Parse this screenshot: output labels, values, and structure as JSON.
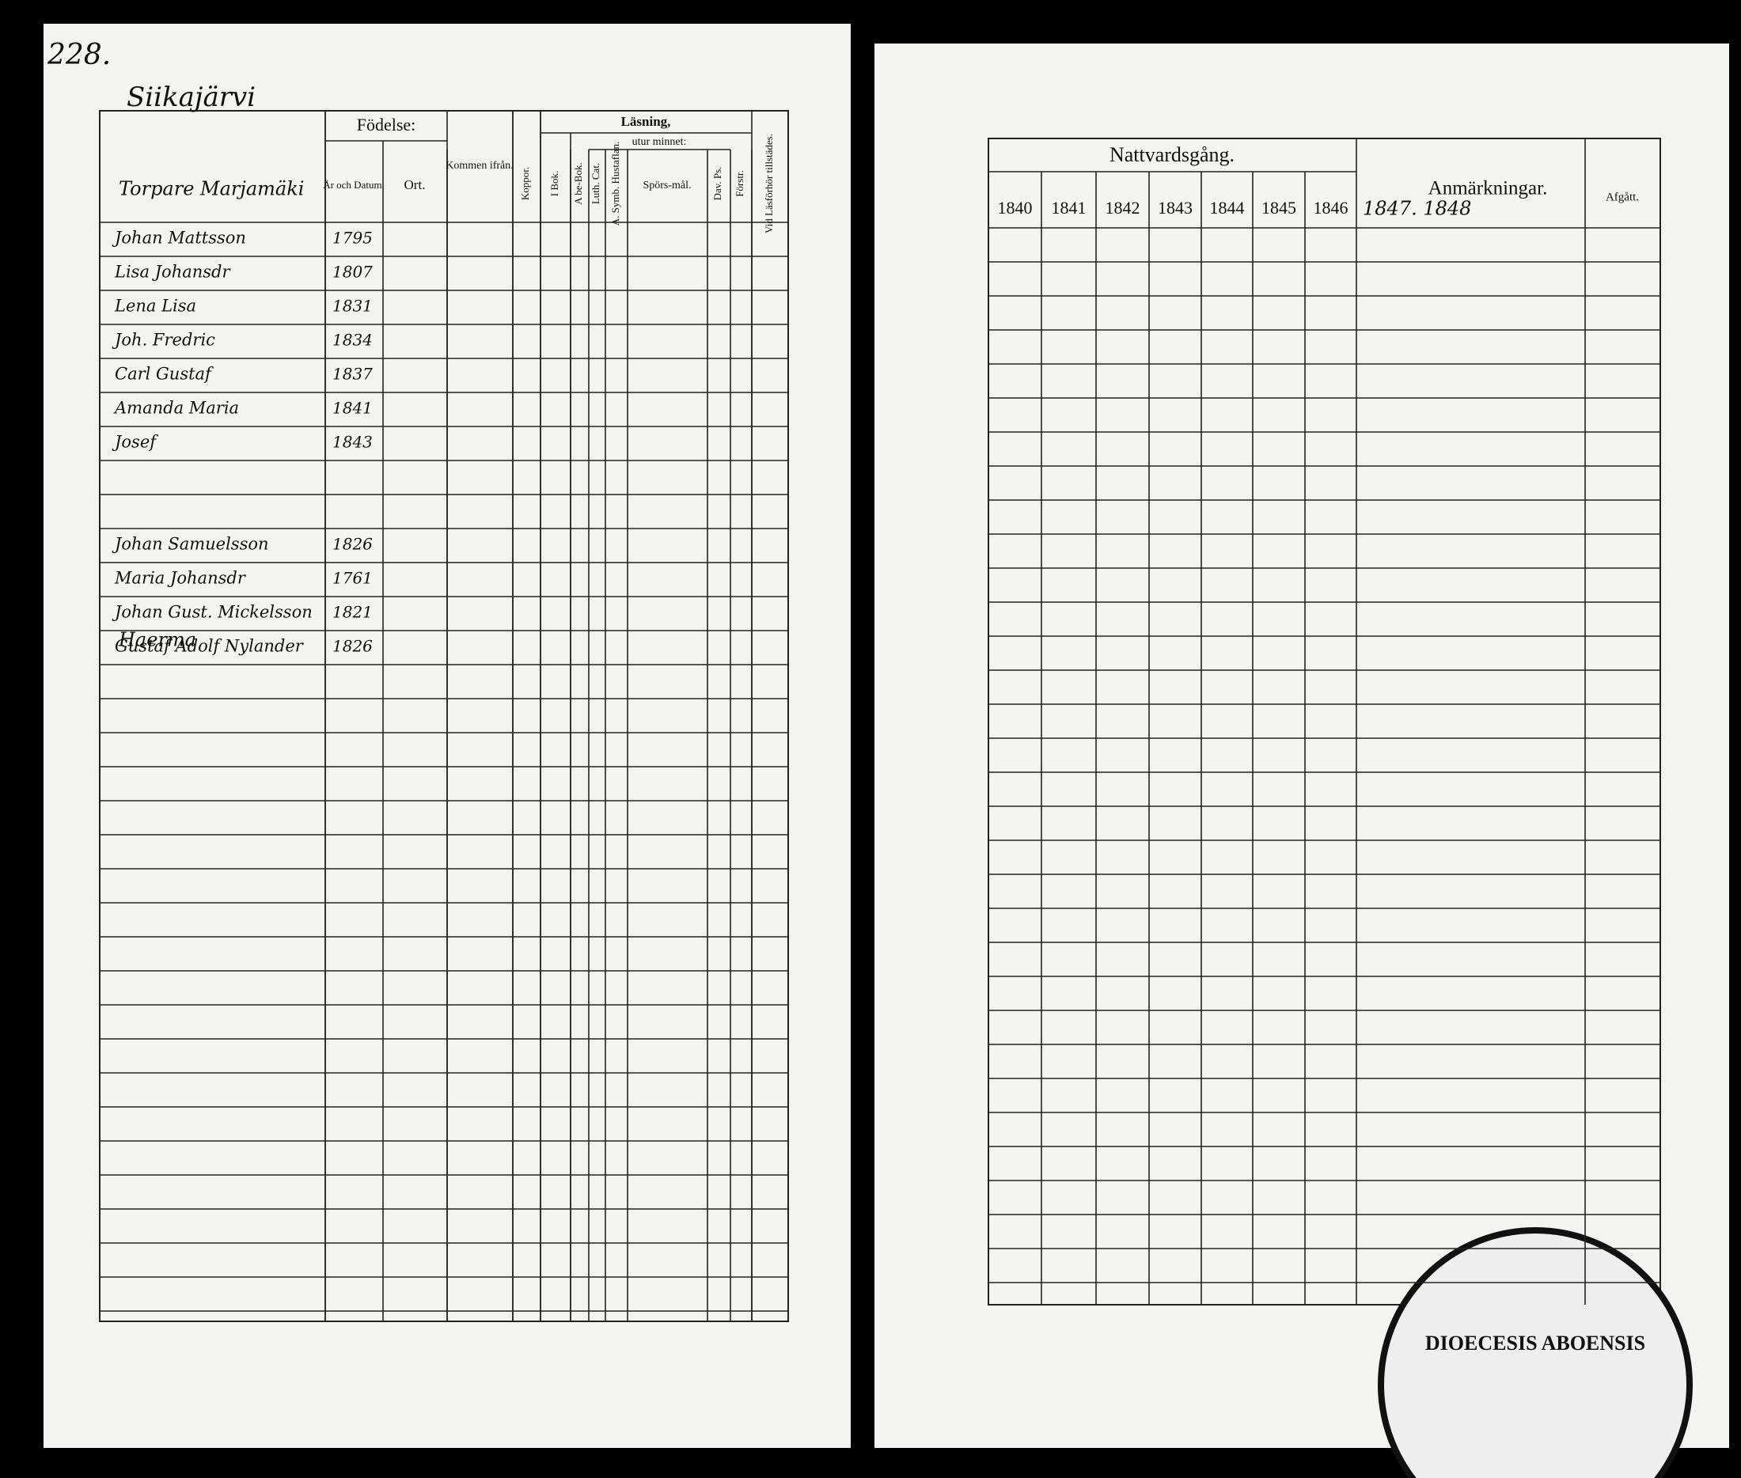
{
  "left_page": {
    "page_number": "228.",
    "village": "Siikajärvi",
    "header": {
      "birth": "Födelse:",
      "birth_date": "År och Datum.",
      "birth_place": "Ort.",
      "came_from": "Kommen ifrån.",
      "smallpox": "Koppor.",
      "reading": "Läsning,",
      "by_heart": "utur minnet:",
      "book": "I Bok.",
      "abc_book": "A be-Bok.",
      "catechism": "Luth. Cat.",
      "symbols": "A. Symb. Hustaflan.",
      "questions": "Spörs-mål.",
      "psalms": "Dav. Ps.",
      "understanding": "Förstr.",
      "attendance": "Vid Läsförhör tillstädes."
    },
    "sections": [
      "Torpare Marjamäki",
      "Haerma"
    ],
    "rows": [
      {
        "name": "Johan Mattsson",
        "date": "1795"
      },
      {
        "name": "Lisa Johansdr",
        "date": "1807"
      },
      {
        "name": "Lena Lisa",
        "date": "1831"
      },
      {
        "name": "Joh. Fredric",
        "date": "1834"
      },
      {
        "name": "Carl Gustaf",
        "date": "1837"
      },
      {
        "name": "Amanda Maria",
        "date": "1841"
      },
      {
        "name": "Josef",
        "date": "1843"
      },
      {
        "name": "Johan Samuelsson",
        "date": "1826"
      },
      {
        "name": "Maria Johansdr",
        "date": "1761"
      },
      {
        "name": "Johan Gust. Mickelsson",
        "date": "1821"
      },
      {
        "name": "Gustaf Adolf Nylander",
        "date": "1826"
      }
    ]
  },
  "right_page": {
    "title": "Nattvardsgång.",
    "years": [
      "1840",
      "1841",
      "1842",
      "1843",
      "1844",
      "1845",
      "1846"
    ],
    "extra_years": "1847. 1848",
    "remarks": "Anmärkningar.",
    "departed": "Afgått.",
    "stamp": "DIOECESIS ABOENSIS"
  }
}
